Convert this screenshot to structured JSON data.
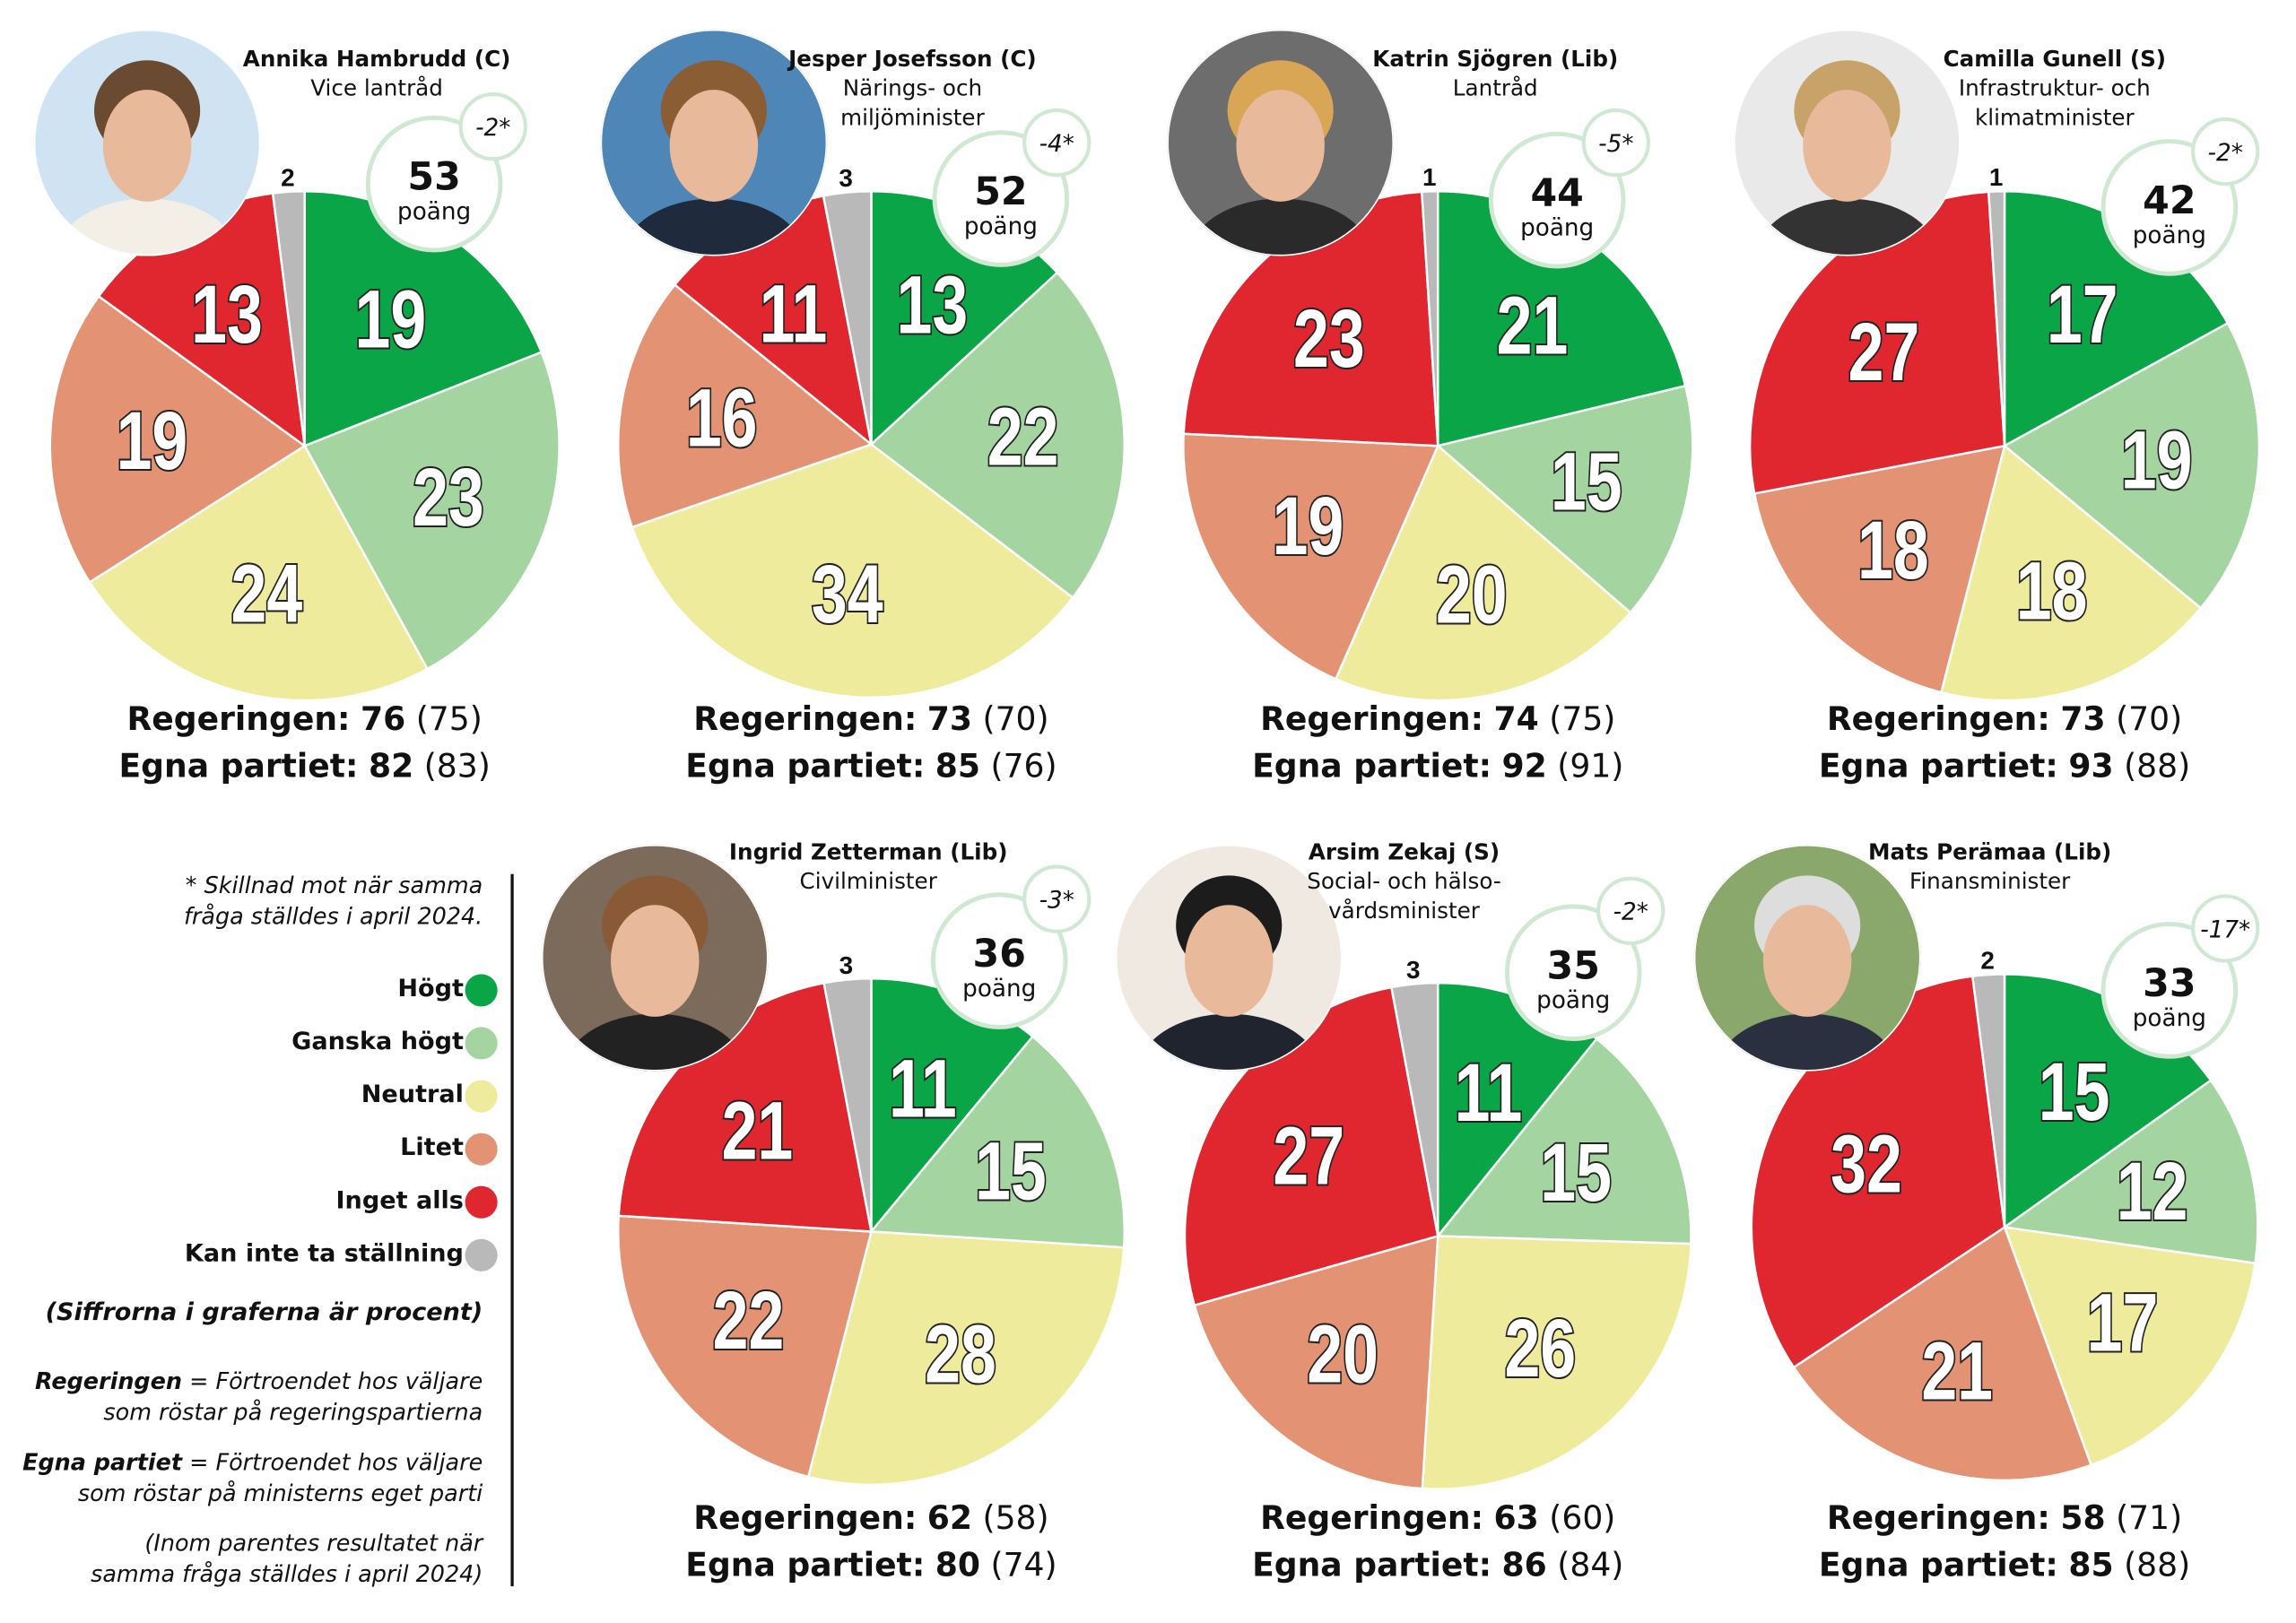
{
  "colors": {
    "hogt": "#0aa546",
    "ganska_hogt": "#a4d4a0",
    "neutral": "#eeec9c",
    "litet": "#e39374",
    "inget": "#e0262e",
    "kan_inte": "#b9b9b9",
    "bubble_border": "#cfe8d2"
  },
  "legend": {
    "note": [
      "* Skillnad mot när samma",
      "fråga ställdes i april 2024."
    ],
    "items": [
      {
        "label": "Högt",
        "color": "#0aa546"
      },
      {
        "label": "Ganska högt",
        "color": "#a4d4a0"
      },
      {
        "label": "Neutral",
        "color": "#eeec9c"
      },
      {
        "label": "Litet",
        "color": "#e39374"
      },
      {
        "label": "Inget alls",
        "color": "#e0262e"
      },
      {
        "label": "Kan inte ta ställning",
        "color": "#b9b9b9"
      }
    ],
    "percent_note": "(Siffrorna i graferna är procent)",
    "def_reg_term": "Regeringen",
    "def_reg_text": [
      " = Förtroendet hos väljare",
      "som röstar på regeringspartierna"
    ],
    "def_egna_term": "Egna partiet",
    "def_egna_text": [
      " = Förtroendet hos väljare",
      "som röstar på ministerns eget parti"
    ],
    "paren_note": [
      "(Inom parentes resultatet när",
      "samma fråga ställdes i april 2024)"
    ]
  },
  "labels": {
    "points": "poäng",
    "reg": "Regeringen:",
    "egna": "Egna partiet:"
  },
  "chart_data": [
    {
      "type": "pie",
      "name": "Annika Hambrudd (C)",
      "role": [
        "Vice lantråd"
      ],
      "score": "53",
      "delta": "-2*",
      "categories": [
        "Högt",
        "Ganska högt",
        "Neutral",
        "Litet",
        "Inget alls",
        "Kan inte ta ställning"
      ],
      "values": [
        19,
        23,
        24,
        19,
        13,
        2
      ],
      "reg": "76",
      "reg_prev": "(75)",
      "egna": "82",
      "egna_prev": "(83)"
    },
    {
      "type": "pie",
      "name": "Jesper Josefsson (C)",
      "role": [
        "Närings- och",
        "miljöminister"
      ],
      "score": "52",
      "delta": "-4*",
      "categories": [
        "Högt",
        "Ganska högt",
        "Neutral",
        "Litet",
        "Inget alls",
        "Kan inte ta ställning"
      ],
      "values": [
        13,
        22,
        34,
        16,
        11,
        3
      ],
      "reg": "73",
      "reg_prev": "(70)",
      "egna": "85",
      "egna_prev": "(76)"
    },
    {
      "type": "pie",
      "name": "Katrin Sjögren (Lib)",
      "role": [
        "Lantråd"
      ],
      "score": "44",
      "delta": "-5*",
      "categories": [
        "Högt",
        "Ganska högt",
        "Neutral",
        "Litet",
        "Inget alls",
        "Kan inte ta ställning"
      ],
      "values": [
        21,
        15,
        20,
        19,
        23,
        1
      ],
      "reg": "74",
      "reg_prev": "(75)",
      "egna": "92",
      "egna_prev": "(91)"
    },
    {
      "type": "pie",
      "name": "Camilla Gunell (S)",
      "role": [
        "Infrastruktur- och",
        "klimatminister"
      ],
      "score": "42",
      "delta": "-2*",
      "categories": [
        "Högt",
        "Ganska högt",
        "Neutral",
        "Litet",
        "Inget alls",
        "Kan inte ta ställning"
      ],
      "values": [
        17,
        19,
        18,
        18,
        27,
        1
      ],
      "reg": "73",
      "reg_prev": "(70)",
      "egna": "93",
      "egna_prev": "(88)"
    },
    {
      "type": "pie",
      "name": "Ingrid Zetterman (Lib)",
      "role": [
        "Civilminister"
      ],
      "score": "36",
      "delta": "-3*",
      "categories": [
        "Högt",
        "Ganska högt",
        "Neutral",
        "Litet",
        "Inget alls",
        "Kan inte ta ställning"
      ],
      "values": [
        11,
        15,
        28,
        22,
        21,
        3
      ],
      "reg": "62",
      "reg_prev": "(58)",
      "egna": "80",
      "egna_prev": "(74)"
    },
    {
      "type": "pie",
      "name": "Arsim Zekaj (S)",
      "role": [
        "Social- och hälso-",
        "vårdsminister"
      ],
      "score": "35",
      "delta": "-2*",
      "categories": [
        "Högt",
        "Ganska högt",
        "Neutral",
        "Litet",
        "Inget alls",
        "Kan inte ta ställning"
      ],
      "values": [
        11,
        15,
        26,
        20,
        27,
        3
      ],
      "reg": "63",
      "reg_prev": "(60)",
      "egna": "86",
      "egna_prev": "(84)"
    },
    {
      "type": "pie",
      "name": "Mats Perämaa (Lib)",
      "role": [
        "Finansminister"
      ],
      "score": "33",
      "delta": "-17*",
      "categories": [
        "Högt",
        "Ganska högt",
        "Neutral",
        "Litet",
        "Inget alls",
        "Kan inte ta ställning"
      ],
      "values": [
        15,
        12,
        17,
        21,
        32,
        2
      ],
      "reg": "58",
      "reg_prev": "(71)",
      "egna": "85",
      "egna_prev": "(88)"
    }
  ]
}
